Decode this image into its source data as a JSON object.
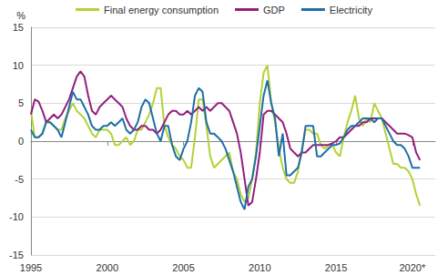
{
  "chart_data": {
    "type": "line",
    "y_label": "%",
    "x": [
      1995,
      1995.25,
      1995.5,
      1995.75,
      1996,
      1996.25,
      1996.5,
      1996.75,
      1997,
      1997.25,
      1997.5,
      1997.75,
      1998,
      1998.25,
      1998.5,
      1998.75,
      1999,
      1999.25,
      1999.5,
      1999.75,
      2000,
      2000.25,
      2000.5,
      2000.75,
      2001,
      2001.25,
      2001.5,
      2001.75,
      2002,
      2002.25,
      2002.5,
      2002.75,
      2003,
      2003.25,
      2003.5,
      2003.75,
      2004,
      2004.25,
      2004.5,
      2004.75,
      2005,
      2005.25,
      2005.5,
      2005.75,
      2006,
      2006.25,
      2006.5,
      2006.75,
      2007,
      2007.25,
      2007.5,
      2007.75,
      2008,
      2008.25,
      2008.5,
      2008.75,
      2009,
      2009.25,
      2009.5,
      2009.75,
      2010,
      2010.25,
      2010.5,
      2010.75,
      2011,
      2011.25,
      2011.5,
      2011.75,
      2012,
      2012.25,
      2012.5,
      2012.75,
      2013,
      2013.25,
      2013.5,
      2013.75,
      2014,
      2014.25,
      2014.5,
      2014.75,
      2015,
      2015.25,
      2015.5,
      2015.75,
      2016,
      2016.25,
      2016.5,
      2016.75,
      2017,
      2017.25,
      2017.5,
      2017.75,
      2018,
      2018.25,
      2018.5,
      2018.75,
      2019,
      2019.25,
      2019.5,
      2019.75,
      2020,
      2020.25,
      2020.5
    ],
    "series": [
      {
        "name": "Final energy consumption",
        "color": "#b2d235",
        "values": [
          4.0,
          0.5,
          0.5,
          1.0,
          2.5,
          2.5,
          2.0,
          1.5,
          1.5,
          3.0,
          4.0,
          5.0,
          4.0,
          3.5,
          3.0,
          2.0,
          1.0,
          0.5,
          1.5,
          1.5,
          1.5,
          1.0,
          -0.5,
          -0.5,
          0.0,
          0.5,
          -0.5,
          0.0,
          1.5,
          1.5,
          2.5,
          3.5,
          5.0,
          7.0,
          7.0,
          2.0,
          0.5,
          -0.5,
          -1.0,
          -2.0,
          -2.5,
          -3.5,
          -3.5,
          0.5,
          5.5,
          5.5,
          2.0,
          -2.0,
          -3.5,
          -3.0,
          -2.5,
          -2.0,
          -1.5,
          -4.0,
          -5.0,
          -7.0,
          -8.0,
          -7.5,
          -5.0,
          -1.5,
          5.0,
          9.0,
          10.0,
          5.0,
          2.5,
          -1.0,
          -3.5,
          -5.0,
          -5.5,
          -5.5,
          -4.0,
          -1.0,
          1.5,
          1.5,
          1.0,
          1.0,
          -0.5,
          -1.0,
          -0.5,
          -0.5,
          -1.5,
          -2.0,
          0.5,
          2.5,
          4.0,
          6.0,
          3.0,
          2.0,
          3.0,
          2.5,
          5.0,
          4.0,
          3.0,
          1.0,
          -1.0,
          -3.0,
          -3.0,
          -3.5,
          -3.5,
          -4.0,
          -5.0,
          -7.0,
          -8.5
        ]
      },
      {
        "name": "GDP",
        "color": "#931f7d",
        "values": [
          3.5,
          5.5,
          5.2,
          4.0,
          2.5,
          3.0,
          3.5,
          3.0,
          3.5,
          4.5,
          5.5,
          7.0,
          8.5,
          9.2,
          8.5,
          6.0,
          4.0,
          3.5,
          4.5,
          5.0,
          5.5,
          6.0,
          5.5,
          5.0,
          4.5,
          3.0,
          2.0,
          1.5,
          1.5,
          2.0,
          2.0,
          1.5,
          1.5,
          1.0,
          1.5,
          2.5,
          3.5,
          4.0,
          4.0,
          3.5,
          3.5,
          4.0,
          3.5,
          4.0,
          4.5,
          4.0,
          4.5,
          4.0,
          4.5,
          5.0,
          5.0,
          4.5,
          4.0,
          2.5,
          1.0,
          -1.5,
          -5.0,
          -8.5,
          -8.0,
          -5.0,
          -1.5,
          3.5,
          4.0,
          4.0,
          3.5,
          3.0,
          2.5,
          1.0,
          -1.0,
          -1.5,
          -2.0,
          -1.5,
          -1.5,
          -1.0,
          -0.5,
          -0.5,
          -0.5,
          -0.5,
          -0.5,
          -0.3,
          0.0,
          0.5,
          0.5,
          1.0,
          1.5,
          2.0,
          2.0,
          2.5,
          2.5,
          3.0,
          3.0,
          3.0,
          3.0,
          2.5,
          2.0,
          1.5,
          1.0,
          1.0,
          1.0,
          0.8,
          0.5,
          -1.5,
          -2.5
        ]
      },
      {
        "name": "Electricity",
        "color": "#1f6ea6",
        "values": [
          1.5,
          0.5,
          0.5,
          1.0,
          2.5,
          2.5,
          2.0,
          1.5,
          0.5,
          2.5,
          4.5,
          6.5,
          5.5,
          5.5,
          4.5,
          3.5,
          2.0,
          1.5,
          1.5,
          2.0,
          2.0,
          2.5,
          2.0,
          2.5,
          3.0,
          1.5,
          1.0,
          1.5,
          2.5,
          4.5,
          5.5,
          5.0,
          3.0,
          1.0,
          0.0,
          2.0,
          2.0,
          -0.5,
          -2.0,
          -2.5,
          -1.0,
          0.0,
          2.5,
          6.0,
          7.0,
          6.5,
          2.5,
          1.0,
          1.0,
          0.5,
          0.0,
          -1.0,
          -2.5,
          -4.0,
          -6.0,
          -8.0,
          -9.0,
          -6.0,
          -5.0,
          -2.0,
          2.0,
          6.0,
          8.0,
          5.0,
          3.0,
          -2.0,
          1.0,
          -4.5,
          -4.5,
          -4.0,
          -3.5,
          -1.5,
          2.0,
          2.0,
          2.0,
          -2.0,
          -2.0,
          -1.5,
          -1.0,
          -0.5,
          -0.5,
          -0.3,
          0.5,
          1.5,
          2.0,
          2.0,
          2.5,
          3.0,
          3.0,
          3.0,
          2.5,
          3.0,
          3.0,
          2.0,
          1.0,
          0.0,
          -0.5,
          -0.5,
          -1.0,
          -2.0,
          -3.5,
          -3.5,
          -3.5
        ]
      }
    ],
    "xlim": [
      1995,
      2021.5
    ],
    "xticks": [
      1995,
      2000,
      2005,
      2010,
      2015,
      {
        "value": 2020,
        "label": "2020*"
      }
    ],
    "ylim": [
      -15,
      15
    ],
    "yticks": [
      -15,
      -10,
      -5,
      0,
      5,
      10,
      15
    ],
    "grid": true,
    "legend": "top"
  }
}
